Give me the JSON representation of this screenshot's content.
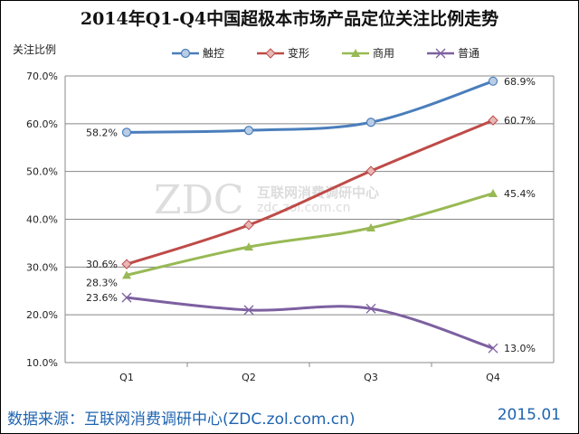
{
  "chart_data": {
    "type": "line",
    "title": "2014年Q1-Q4中国超极本市场产品定位关注比例走势",
    "ylabel": "关注比例",
    "xlabel": "",
    "categories": [
      "Q1",
      "Q2",
      "Q3",
      "Q4"
    ],
    "ylim": [
      10,
      70
    ],
    "yticks": [
      "10.0%",
      "20.0%",
      "30.0%",
      "40.0%",
      "50.0%",
      "60.0%",
      "70.0%"
    ],
    "grid": true,
    "legend_position": "top",
    "series": [
      {
        "name": "触控",
        "color": "#4a7ebb",
        "marker": "circle",
        "values": [
          58.2,
          58.6,
          60.3,
          68.9
        ],
        "labels": [
          "58.2%",
          "",
          "",
          "68.9%"
        ]
      },
      {
        "name": "变形",
        "color": "#be4b48",
        "marker": "diamond",
        "values": [
          30.6,
          38.8,
          50.1,
          60.7
        ],
        "labels": [
          "30.6%",
          "",
          "",
          "60.7%"
        ]
      },
      {
        "name": "商用",
        "color": "#98b954",
        "marker": "triangle",
        "values": [
          28.3,
          34.2,
          38.2,
          45.4
        ],
        "labels": [
          "28.3%",
          "",
          "",
          "45.4%"
        ]
      },
      {
        "name": "普通",
        "color": "#7d60a0",
        "marker": "x",
        "values": [
          23.6,
          21.0,
          21.3,
          13.0
        ],
        "labels": [
          "23.6%",
          "",
          "",
          "13.0%"
        ]
      }
    ]
  },
  "watermark": {
    "logo": "ZDC",
    "name": "互联网消费调研中心",
    "url": "zdc.zol.com.cn"
  },
  "footer": {
    "source": "数据来源：互联网消费调研中心(ZDC.zol.com.cn)",
    "date": "2015.01"
  }
}
